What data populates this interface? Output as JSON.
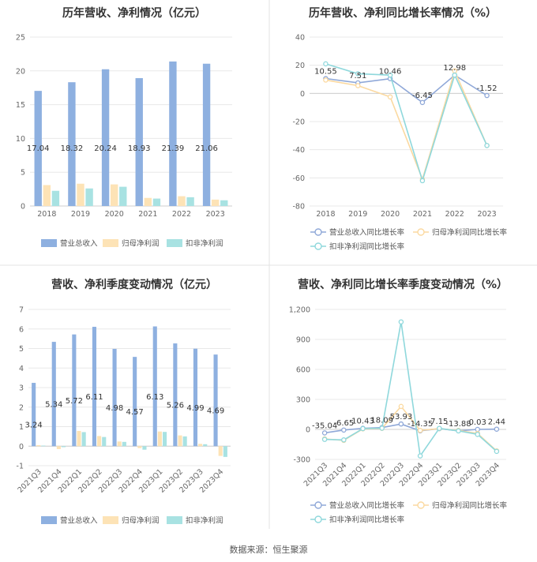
{
  "source_text": "数据来源：恒生聚源",
  "colors": {
    "revenue": "#8eb0e0",
    "net_profit": "#fde3b6",
    "deducted_profit": "#a8e2e2",
    "rev_growth_line": "#8fa8d8",
    "np_growth_line": "#fbd9a0",
    "dp_growth_line": "#8fd8dc",
    "grid": "#e8e8e8",
    "divider": "#e3e3e3"
  },
  "chart_data": [
    {
      "id": "annual_bar",
      "type": "bar",
      "title": "历年营收、净利情况（亿元）",
      "categories": [
        "2018",
        "2019",
        "2020",
        "2021",
        "2022",
        "2023"
      ],
      "ylim": [
        0,
        25
      ],
      "yticks": [
        0,
        5,
        10,
        15,
        20,
        25
      ],
      "grid": true,
      "legend_position": "bottom",
      "series": [
        {
          "name": "营业总收入",
          "color_key": "revenue",
          "values": [
            17.04,
            18.32,
            20.24,
            18.93,
            21.39,
            21.06
          ],
          "labels": [
            "17.04",
            "18.32",
            "20.24",
            "18.93",
            "21.39",
            "21.06"
          ]
        },
        {
          "name": "归母净利润",
          "color_key": "net_profit",
          "values": [
            3.1,
            3.3,
            3.2,
            1.2,
            1.45,
            0.95
          ]
        },
        {
          "name": "扣非净利润",
          "color_key": "deducted_profit",
          "values": [
            2.25,
            2.6,
            2.85,
            1.1,
            1.3,
            0.85
          ]
        }
      ]
    },
    {
      "id": "annual_growth",
      "type": "line",
      "title": "历年营收、净利同比增长率情况（%）",
      "categories": [
        "2018",
        "2019",
        "2020",
        "2021",
        "2022",
        "2023"
      ],
      "ylim": [
        -80,
        40
      ],
      "yticks": [
        -80,
        -60,
        -40,
        -20,
        0,
        20,
        40
      ],
      "grid": true,
      "legend_position": "bottom",
      "series": [
        {
          "name": "营业总收入同比增长率",
          "color_key": "rev_growth_line",
          "values": [
            10.55,
            7.51,
            10.46,
            -6.45,
            12.98,
            -1.52
          ],
          "labels": [
            "10.55",
            "7.51",
            "10.46",
            "-6.45",
            "12.98",
            "-1.52"
          ]
        },
        {
          "name": "归母净利润同比增长率",
          "color_key": "np_growth_line",
          "values": [
            9.5,
            5.5,
            -2.5,
            -61,
            16,
            -37
          ]
        },
        {
          "name": "扣非净利润同比增长率",
          "color_key": "dp_growth_line",
          "values": [
            21,
            14,
            13,
            -62,
            13,
            -37
          ]
        }
      ]
    },
    {
      "id": "quarterly_bar",
      "type": "bar",
      "title": "营收、净利季度变动情况（亿元）",
      "categories": [
        "2021Q3",
        "2021Q4",
        "2022Q1",
        "2022Q2",
        "2022Q3",
        "2022Q4",
        "2023Q1",
        "2023Q2",
        "2023Q3",
        "2023Q4"
      ],
      "ylim": [
        -1,
        7
      ],
      "yticks": [
        -1,
        0,
        1,
        2,
        3,
        4,
        5,
        6,
        7
      ],
      "grid": true,
      "legend_position": "bottom",
      "series": [
        {
          "name": "营业总收入",
          "color_key": "revenue",
          "values": [
            3.24,
            5.34,
            5.72,
            6.11,
            4.98,
            4.57,
            6.13,
            5.26,
            4.99,
            4.69
          ],
          "labels": [
            "3.24",
            "5.34",
            "5.72",
            "6.11",
            "4.98",
            "4.57",
            "6.13",
            "5.26",
            "4.99",
            "4.69"
          ]
        },
        {
          "name": "归母净利润",
          "color_key": "net_profit",
          "values": [
            0.05,
            -0.15,
            0.78,
            0.52,
            0.24,
            -0.1,
            0.75,
            0.55,
            0.12,
            -0.5
          ]
        },
        {
          "name": "扣非净利润",
          "color_key": "deducted_profit",
          "values": [
            0.03,
            -0.05,
            0.72,
            0.47,
            0.22,
            -0.18,
            0.73,
            0.5,
            0.1,
            -0.55
          ]
        }
      ]
    },
    {
      "id": "quarterly_growth",
      "type": "line",
      "title": "营收、净利同比增长率季度变动情况（%）",
      "categories": [
        "2021Q3",
        "2021Q4",
        "2022Q1",
        "2022Q2",
        "2022Q3",
        "2022Q4",
        "2023Q1",
        "2023Q2",
        "2023Q3",
        "2023Q4"
      ],
      "ylim": [
        -300,
        1200
      ],
      "yticks": [
        -300,
        0,
        300,
        600,
        900,
        1200
      ],
      "ytick_labels": [
        "-300",
        "0",
        "300",
        "600",
        "900",
        "1,200"
      ],
      "grid": true,
      "legend_position": "bottom",
      "series": [
        {
          "name": "营业总收入同比增长率",
          "color_key": "rev_growth_line",
          "values": [
            -35.04,
            -6.65,
            10.43,
            18.09,
            53.93,
            -14.35,
            7.15,
            -13.88,
            0.03,
            2.44
          ],
          "labels": [
            "-35.04",
            "-6.65",
            "10.43",
            "18.09",
            "53.93",
            "-14.35",
            "7.15",
            "-13.88",
            "0.03",
            "2.44"
          ]
        },
        {
          "name": "归母净利润同比增长率",
          "color_key": "np_growth_line",
          "values": [
            -95,
            -110,
            5,
            10,
            230,
            -10,
            8,
            -10,
            -40,
            -215
          ]
        },
        {
          "name": "扣非净利润同比增长率",
          "color_key": "dp_growth_line",
          "values": [
            -100,
            -105,
            8,
            12,
            1075,
            -265,
            10,
            -15,
            -50,
            -220
          ]
        }
      ]
    }
  ]
}
